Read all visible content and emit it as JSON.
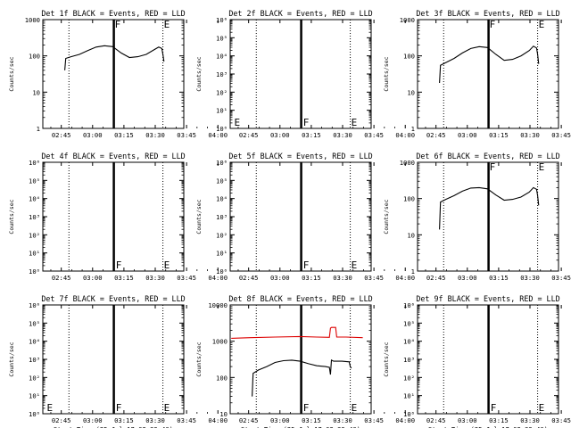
{
  "figure": {
    "background": "#ffffff",
    "ink": "#000000",
    "lld_color": "#dd0000"
  },
  "chart_data": [
    {
      "type": "line",
      "det": 1,
      "title": "Det 1f BLACK = Events, RED = LLD",
      "ylabel": "Counts/sec",
      "xlabel": "",
      "ylog": true,
      "ylim": [
        1,
        1000
      ],
      "yticks": [
        {
          "v": 1,
          "label": "1"
        },
        {
          "v": 10,
          "label": "10"
        },
        {
          "v": 100,
          "label": "100"
        },
        {
          "v": 1000,
          "label": "1000"
        }
      ],
      "xticks": [
        "02:45",
        "03:00",
        "03:15",
        "03:30",
        "03:45",
        "04:00"
      ],
      "xlim_min": [
        2.5,
        70
      ],
      "dotted_min": [
        15,
        60
      ],
      "solid_min": 36.5,
      "flags": [
        {
          "x": 36.5,
          "label": "F"
        },
        {
          "x": 60,
          "label": "E"
        }
      ],
      "series": [
        {
          "color": "black",
          "x": [
            13,
            13.5,
            16,
            20,
            24,
            28,
            32,
            36,
            40,
            44,
            48,
            52,
            56,
            58,
            59.5,
            60,
            60.5
          ],
          "y": [
            40,
            85,
            95,
            110,
            140,
            175,
            190,
            180,
            120,
            90,
            95,
            110,
            150,
            175,
            160,
            110,
            70
          ]
        }
      ]
    },
    {
      "type": "line",
      "det": 2,
      "title": "Det 2f BLACK = Events, RED = LLD",
      "ylabel": "Counts/sec",
      "xlabel": "",
      "ylog": true,
      "ylim": [
        1,
        1000000
      ],
      "yticks": [
        {
          "v": 1,
          "label": "10⁰"
        },
        {
          "v": 10,
          "label": "10¹"
        },
        {
          "v": 100,
          "label": "10²"
        },
        {
          "v": 1000,
          "label": "10³"
        },
        {
          "v": 10000,
          "label": "10⁴"
        },
        {
          "v": 100000,
          "label": "10⁵"
        },
        {
          "v": 1000000,
          "label": "10⁶"
        }
      ],
      "xticks": [
        "02:45",
        "03:00",
        "03:15",
        "03:30",
        "03:45",
        "04:00"
      ],
      "xlim_min": [
        2.5,
        70
      ],
      "dotted_min": [
        15,
        60
      ],
      "solid_min": 36.5,
      "flags": [
        {
          "x": 4,
          "label": "E"
        },
        {
          "x": 37,
          "label": "F"
        },
        {
          "x": 60,
          "label": "E"
        }
      ],
      "series": []
    },
    {
      "type": "line",
      "det": 3,
      "title": "Det 3f BLACK = Events, RED = LLD",
      "ylabel": "Counts/sec",
      "xlabel": "",
      "ylog": true,
      "ylim": [
        1,
        1000
      ],
      "yticks": [
        {
          "v": 1,
          "label": "1"
        },
        {
          "v": 10,
          "label": "10"
        },
        {
          "v": 100,
          "label": "100"
        },
        {
          "v": 1000,
          "label": "1000"
        }
      ],
      "xticks": [
        "02:45",
        "03:00",
        "03:15",
        "03:30",
        "03:45",
        "04:00"
      ],
      "xlim_min": [
        2.5,
        70
      ],
      "dotted_min": [
        15,
        60
      ],
      "solid_min": 36.5,
      "flags": [
        {
          "x": 36.5,
          "label": "F"
        },
        {
          "x": 60,
          "label": "E"
        }
      ],
      "series": [
        {
          "color": "black",
          "x": [
            13,
            13.5,
            16,
            20,
            24,
            28,
            32,
            36,
            40,
            44,
            48,
            52,
            56,
            58,
            59.5,
            60,
            60.5
          ],
          "y": [
            18,
            55,
            65,
            85,
            120,
            160,
            180,
            170,
            110,
            75,
            80,
            100,
            140,
            185,
            165,
            110,
            60
          ]
        }
      ]
    },
    {
      "type": "line",
      "det": 4,
      "title": "Det 4f BLACK = Events, RED = LLD",
      "ylabel": "Counts/sec",
      "xlabel": "",
      "ylog": true,
      "ylim": [
        1,
        1000000
      ],
      "yticks": [
        {
          "v": 1,
          "label": "10⁰"
        },
        {
          "v": 10,
          "label": "10¹"
        },
        {
          "v": 100,
          "label": "10²"
        },
        {
          "v": 1000,
          "label": "10³"
        },
        {
          "v": 10000,
          "label": "10⁴"
        },
        {
          "v": 100000,
          "label": "10⁵"
        },
        {
          "v": 1000000,
          "label": "10⁶"
        }
      ],
      "xticks": [
        "02:45",
        "03:00",
        "03:15",
        "03:30",
        "03:45",
        "04:00"
      ],
      "xlim_min": [
        2.5,
        70
      ],
      "dotted_min": [
        15,
        60
      ],
      "solid_min": 36.5,
      "flags": [
        {
          "x": 37,
          "label": "F"
        },
        {
          "x": 60,
          "label": "E"
        }
      ],
      "series": []
    },
    {
      "type": "line",
      "det": 5,
      "title": "Det 5f BLACK = Events, RED = LLD",
      "ylabel": "Counts/sec",
      "xlabel": "",
      "ylog": true,
      "ylim": [
        1,
        1000000
      ],
      "yticks": [
        {
          "v": 1,
          "label": "10⁰"
        },
        {
          "v": 10,
          "label": "10¹"
        },
        {
          "v": 100,
          "label": "10²"
        },
        {
          "v": 1000,
          "label": "10³"
        },
        {
          "v": 10000,
          "label": "10⁴"
        },
        {
          "v": 100000,
          "label": "10⁵"
        },
        {
          "v": 1000000,
          "label": "10⁶"
        }
      ],
      "xticks": [
        "02:45",
        "03:00",
        "03:15",
        "03:30",
        "03:45",
        "04:00"
      ],
      "xlim_min": [
        2.5,
        70
      ],
      "dotted_min": [
        15,
        60
      ],
      "solid_min": 36.5,
      "flags": [
        {
          "x": 37,
          "label": "F"
        },
        {
          "x": 60,
          "label": "E"
        }
      ],
      "series": []
    },
    {
      "type": "line",
      "det": 6,
      "title": "Det 6f BLACK = Events, RED = LLD",
      "ylabel": "Counts/sec",
      "xlabel": "",
      "ylog": true,
      "ylim": [
        1,
        1000
      ],
      "yticks": [
        {
          "v": 1,
          "label": "1"
        },
        {
          "v": 10,
          "label": "10"
        },
        {
          "v": 100,
          "label": "100"
        },
        {
          "v": 1000,
          "label": "1000"
        }
      ],
      "xticks": [
        "02:45",
        "03:00",
        "03:15",
        "03:30",
        "03:45",
        "04:00"
      ],
      "xlim_min": [
        2.5,
        70
      ],
      "dotted_min": [
        15,
        60
      ],
      "solid_min": 36.5,
      "flags": [
        {
          "x": 36.5,
          "label": "F"
        },
        {
          "x": 60,
          "label": "E"
        }
      ],
      "series": [
        {
          "color": "black",
          "x": [
            13,
            13.5,
            16,
            20,
            24,
            28,
            32,
            36,
            40,
            44,
            48,
            52,
            56,
            58,
            59.5,
            60,
            60.5
          ],
          "y": [
            14,
            80,
            95,
            120,
            160,
            195,
            200,
            185,
            125,
            90,
            95,
            110,
            150,
            200,
            180,
            120,
            65
          ]
        }
      ]
    },
    {
      "type": "line",
      "det": 7,
      "title": "Det 7f BLACK = Events, RED = LLD",
      "ylabel": "Counts/sec",
      "xlabel": "Start Time (25-Jul-17 02:33:40)",
      "ylog": true,
      "ylim": [
        1,
        1000000
      ],
      "yticks": [
        {
          "v": 1,
          "label": "10⁰"
        },
        {
          "v": 10,
          "label": "10¹"
        },
        {
          "v": 100,
          "label": "10²"
        },
        {
          "v": 1000,
          "label": "10³"
        },
        {
          "v": 10000,
          "label": "10⁴"
        },
        {
          "v": 100000,
          "label": "10⁵"
        },
        {
          "v": 1000000,
          "label": "10⁶"
        }
      ],
      "xticks": [
        "02:45",
        "03:00",
        "03:15",
        "03:30",
        "03:45",
        "04:00"
      ],
      "xlim_min": [
        2.5,
        70
      ],
      "dotted_min": [
        15,
        60
      ],
      "solid_min": 36.5,
      "flags": [
        {
          "x": 4,
          "label": "E"
        },
        {
          "x": 37,
          "label": "F"
        },
        {
          "x": 60,
          "label": "E"
        }
      ],
      "series": []
    },
    {
      "type": "line",
      "det": 8,
      "title": "Det 8f BLACK = Events, RED = LLD",
      "ylabel": "Counts/sec",
      "xlabel": "Start Time (25-Jul-17 02:33:40)",
      "ylog": true,
      "ylim": [
        10,
        10000
      ],
      "yticks": [
        {
          "v": 10,
          "label": "10"
        },
        {
          "v": 100,
          "label": "100"
        },
        {
          "v": 1000,
          "label": "1000"
        },
        {
          "v": 10000,
          "label": "10000"
        }
      ],
      "xticks": [
        "02:45",
        "03:00",
        "03:15",
        "03:30",
        "03:45",
        "04:00"
      ],
      "xlim_min": [
        2.5,
        70
      ],
      "dotted_min": [
        15,
        60
      ],
      "solid_min": 36.5,
      "flags": [
        {
          "x": 37,
          "label": "F"
        },
        {
          "x": 60,
          "label": "E"
        }
      ],
      "series": [
        {
          "color": "red",
          "x": [
            3,
            12,
            24,
            36,
            44,
            50,
            50.5,
            51,
            53,
            53.5,
            58,
            66
          ],
          "y": [
            1200,
            1250,
            1300,
            1350,
            1300,
            1280,
            2300,
            2400,
            2400,
            1300,
            1300,
            1250
          ]
        },
        {
          "color": "black",
          "x": [
            13,
            13.5,
            16,
            20,
            24,
            28,
            32,
            36,
            40,
            44,
            48,
            50,
            50.5,
            51,
            52,
            56,
            59.5,
            60,
            60.5
          ],
          "y": [
            30,
            130,
            160,
            200,
            260,
            290,
            300,
            280,
            240,
            210,
            200,
            190,
            120,
            300,
            280,
            280,
            270,
            200,
            180
          ]
        }
      ]
    },
    {
      "type": "line",
      "det": 9,
      "title": "Det 9f BLACK = Events, RED = LLD",
      "ylabel": "Counts/sec",
      "xlabel": "Start Time (25-Jul-17 02:33:40)",
      "ylog": true,
      "ylim": [
        1,
        1000000
      ],
      "yticks": [
        {
          "v": 1,
          "label": "10⁰"
        },
        {
          "v": 10,
          "label": "10¹"
        },
        {
          "v": 100,
          "label": "10²"
        },
        {
          "v": 1000,
          "label": "10³"
        },
        {
          "v": 10000,
          "label": "10⁴"
        },
        {
          "v": 100000,
          "label": "10⁵"
        },
        {
          "v": 1000000,
          "label": "10⁶"
        }
      ],
      "xticks": [
        "02:45",
        "03:00",
        "03:15",
        "03:30",
        "03:45",
        "04:00"
      ],
      "xlim_min": [
        2.5,
        70
      ],
      "dotted_min": [
        15,
        60
      ],
      "solid_min": 36.5,
      "flags": [
        {
          "x": 37,
          "label": "F"
        },
        {
          "x": 60,
          "label": "E"
        }
      ],
      "series": []
    }
  ]
}
